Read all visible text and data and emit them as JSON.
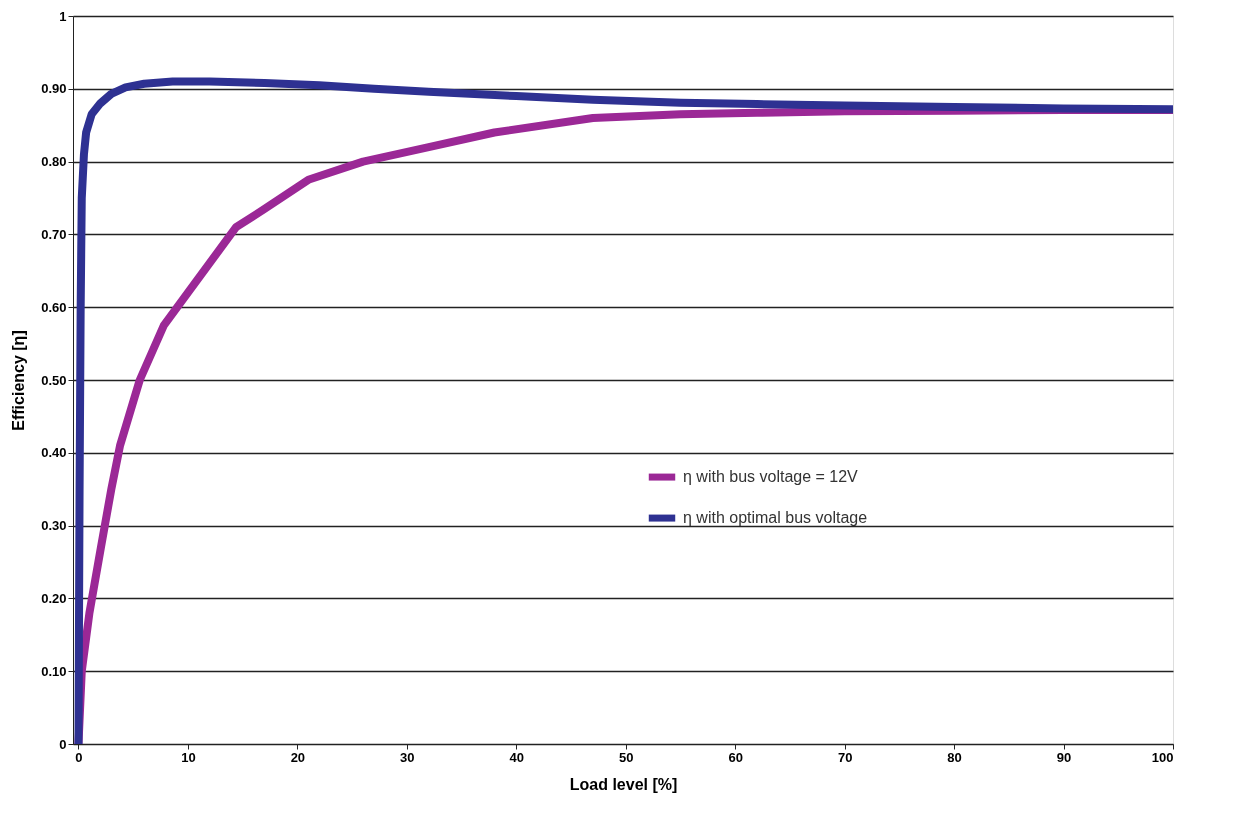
{
  "chart_data": {
    "type": "line",
    "xlabel": "Load level [%]",
    "ylabel": "Efficiency [η]",
    "xlim": [
      -0.5,
      100
    ],
    "xticks": [
      0,
      10,
      20,
      30,
      40,
      50,
      60,
      70,
      80,
      90,
      100
    ],
    "ylim": [
      0,
      1
    ],
    "yticks": [
      0,
      {
        "value": 0.1,
        "label": "0.10"
      },
      {
        "value": 0.2,
        "label": "0.20"
      },
      {
        "value": 0.3,
        "label": "0.30"
      },
      {
        "value": 0.4,
        "label": "0.40"
      },
      {
        "value": 0.5,
        "label": "0.50"
      },
      {
        "value": 0.6,
        "label": "0.60"
      },
      {
        "value": 0.7,
        "label": "0.70"
      },
      {
        "value": 0.8,
        "label": "0.80"
      },
      {
        "value": 0.9,
        "label": "0.90"
      },
      1
    ],
    "grid": "y",
    "legend": "right",
    "line_style": "solid",
    "marker": "none",
    "series": [
      {
        "name": "η with bus voltage = 12V",
        "color": "#9b2896",
        "x": [
          0,
          0.3,
          1.0,
          2.05,
          3.0,
          3.8,
          5.6,
          7.8,
          10,
          14.4,
          17,
          21,
          26,
          32,
          38,
          47,
          55,
          62,
          70,
          80,
          90,
          100
        ],
        "values": [
          0,
          0.1,
          0.18,
          0.27,
          0.35,
          0.41,
          0.5,
          0.575,
          0.62,
          0.71,
          0.735,
          0.775,
          0.8,
          0.82,
          0.84,
          0.86,
          0.865,
          0.867,
          0.869,
          0.87,
          0.871,
          0.871
        ]
      },
      {
        "name": "η with optimal bus voltage",
        "color": "#2e3192",
        "x": [
          0,
          0.1,
          0.2,
          0.3,
          0.5,
          0.7,
          1.2,
          2.0,
          3.0,
          4.3,
          6,
          8.6,
          12,
          17,
          22,
          27,
          32,
          40,
          47,
          55,
          62,
          70,
          80,
          90,
          100
        ],
        "values": [
          0,
          0.35,
          0.6,
          0.75,
          0.81,
          0.84,
          0.865,
          0.88,
          0.893,
          0.902,
          0.907,
          0.91,
          0.91,
          0.908,
          0.905,
          0.9,
          0.896,
          0.89,
          0.885,
          0.881,
          0.879,
          0.877,
          0.875,
          0.873,
          0.872
        ]
      }
    ]
  }
}
